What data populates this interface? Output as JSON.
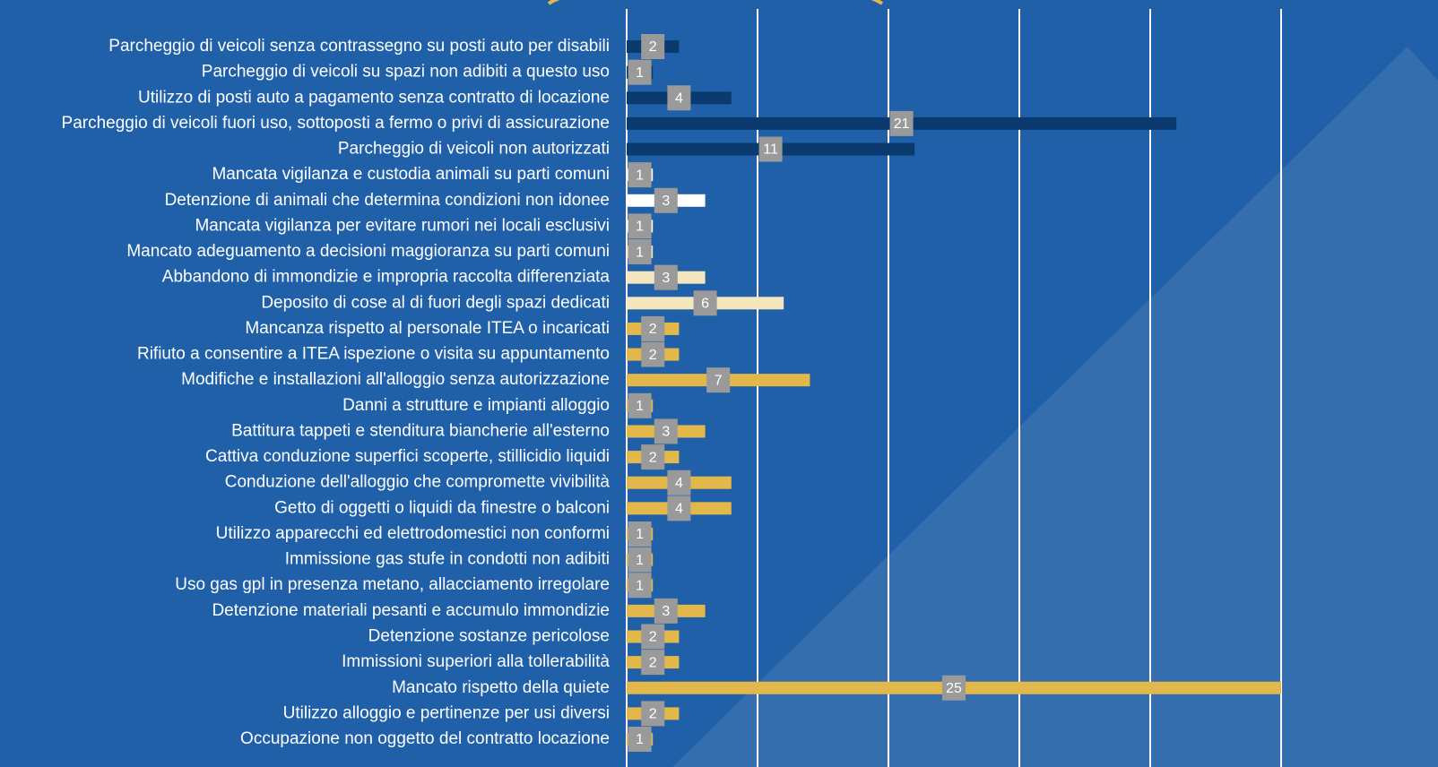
{
  "chart_data": {
    "type": "hbar",
    "categories": [
      "Parcheggio di veicoli senza contrassegno su posti auto per disabili",
      "Parcheggio di veicoli su spazi non adibiti a questo uso",
      "Utilizzo di posti auto a pagamento senza contratto di locazione",
      "Parcheggio di veicoli fuori uso, sottoposti a fermo o privi di assicurazione",
      "Parcheggio di veicoli non autorizzati",
      "Mancata vigilanza e custodia animali su parti comuni",
      "Detenzione di animali che determina condizioni non idonee",
      "Mancata vigilanza per evitare rumori nei locali esclusivi",
      "Mancato adeguamento a decisioni maggioranza su parti comuni",
      "Abbandono di immondizie e impropria raccolta differenziata",
      "Deposito di cose al di fuori degli spazi dedicati",
      "Mancanza rispetto al personale ITEA o incaricati",
      "Rifiuto a consentire a ITEA ispezione o visita su appuntamento",
      "Modifiche e installazioni all'alloggio senza autorizzazione",
      "Danni a strutture e impianti alloggio",
      "Battitura tappeti e stenditura biancherie all'esterno",
      "Cattiva conduzione superfici scoperte, stillicidio liquidi",
      "Conduzione dell'alloggio che compromette vivibilità",
      "Getto di oggetti o liquidi da finestre o balconi",
      "Utilizzo apparecchi ed elettrodomestici non conformi",
      "Immissione gas stufe in condotti non adibiti",
      "Uso gas gpl in presenza metano, allacciamento irregolare",
      "Detenzione materiali pesanti e accumulo immondizie",
      "Detenzione sostanze pericolose",
      "Immissioni superiori alla tollerabilità",
      "Mancato rispetto della quiete",
      "Utilizzo alloggio e pertinenze per usi diversi",
      "Occupazione non oggetto del contratto locazione"
    ],
    "values": [
      2,
      1,
      4,
      21,
      11,
      1,
      3,
      1,
      1,
      3,
      6,
      2,
      2,
      7,
      1,
      3,
      2,
      4,
      4,
      1,
      1,
      1,
      3,
      2,
      2,
      25,
      2,
      1
    ],
    "colors": [
      "#0b3a6e",
      "#0b3a6e",
      "#0b3a6e",
      "#0b3a6e",
      "#0b3a6e",
      "#ffffff",
      "#ffffff",
      "#ffffff",
      "#f5e6c0",
      "#f5e6c0",
      "#f5e6c0",
      "#e3b84a",
      "#e3b84a",
      "#e3b84a",
      "#e3b84a",
      "#e3b84a",
      "#e3b84a",
      "#e3b84a",
      "#e3b84a",
      "#e3b84a",
      "#e3b84a",
      "#e3b84a",
      "#e3b84a",
      "#e3b84a",
      "#e3b84a",
      "#e3b84a",
      "#e3b84a",
      "#e3b84a"
    ],
    "xlim": [
      0,
      25
    ],
    "xticks": [
      0,
      5,
      10,
      15,
      20,
      25
    ],
    "grid": true
  }
}
